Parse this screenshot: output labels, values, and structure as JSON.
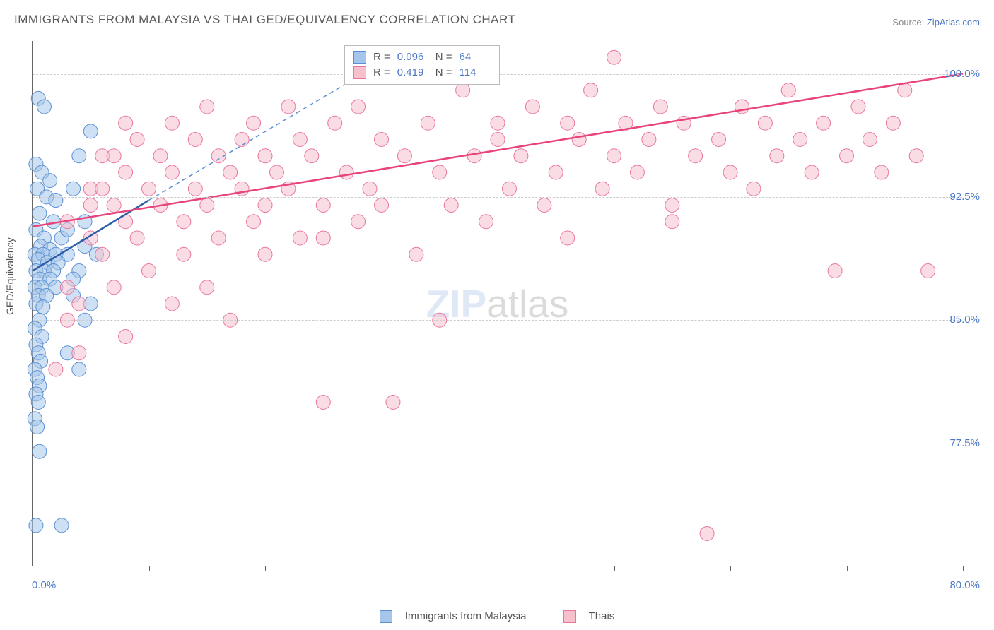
{
  "title": "IMMIGRANTS FROM MALAYSIA VS THAI GED/EQUIVALENCY CORRELATION CHART",
  "source_label": "Source:",
  "source_value": "ZipAtlas.com",
  "ylabel": "GED/Equivalency",
  "chart": {
    "type": "scatter",
    "xlim": [
      0,
      80
    ],
    "ylim": [
      70,
      102
    ],
    "x_tick_start": 10,
    "x_tick_step": 10,
    "x_tick_count": 8,
    "x_label_min": "0.0%",
    "x_label_max": "80.0%",
    "y_gridlines": [
      77.5,
      85.0,
      92.5,
      100.0
    ],
    "y_labels": [
      "77.5%",
      "85.0%",
      "92.5%",
      "100.0%"
    ],
    "background_color": "#ffffff",
    "grid_color": "#cccccc",
    "axis_color": "#666666",
    "marker_radius": 10,
    "marker_opacity": 0.55,
    "series": [
      {
        "name": "Immigrants from Malaysia",
        "fill": "#a5c6ea",
        "stroke": "#5a8fd4",
        "line_color": "#2e5da8",
        "line_width": 2.5,
        "dash_color": "#5a8fd4",
        "trend": {
          "x1": 0,
          "y1": 88.0,
          "x2": 10,
          "y2": 92.3
        },
        "dash_trend": {
          "x1": 10,
          "y1": 92.3,
          "x2": 32,
          "y2": 101.5
        },
        "R": "0.096",
        "N": "64",
        "points": [
          [
            0.5,
            98.5
          ],
          [
            1.0,
            98.0
          ],
          [
            0.3,
            94.5
          ],
          [
            0.8,
            94.0
          ],
          [
            1.5,
            93.5
          ],
          [
            0.4,
            93.0
          ],
          [
            1.2,
            92.5
          ],
          [
            2.0,
            92.3
          ],
          [
            0.6,
            91.5
          ],
          [
            1.8,
            91.0
          ],
          [
            0.3,
            90.5
          ],
          [
            1.0,
            90.0
          ],
          [
            2.5,
            90.0
          ],
          [
            0.7,
            89.5
          ],
          [
            1.5,
            89.3
          ],
          [
            0.2,
            89.0
          ],
          [
            0.9,
            89.0
          ],
          [
            2.0,
            89.0
          ],
          [
            3.0,
            89.0
          ],
          [
            0.5,
            88.7
          ],
          [
            1.3,
            88.5
          ],
          [
            2.2,
            88.5
          ],
          [
            0.3,
            88.0
          ],
          [
            1.0,
            88.0
          ],
          [
            1.8,
            88.0
          ],
          [
            0.6,
            87.5
          ],
          [
            1.5,
            87.5
          ],
          [
            0.2,
            87.0
          ],
          [
            0.8,
            87.0
          ],
          [
            2.0,
            87.0
          ],
          [
            0.5,
            86.5
          ],
          [
            1.2,
            86.5
          ],
          [
            0.3,
            86.0
          ],
          [
            0.9,
            85.8
          ],
          [
            0.6,
            85.0
          ],
          [
            0.2,
            84.5
          ],
          [
            0.8,
            84.0
          ],
          [
            0.3,
            83.5
          ],
          [
            0.5,
            83.0
          ],
          [
            0.7,
            82.5
          ],
          [
            0.2,
            82.0
          ],
          [
            0.4,
            81.5
          ],
          [
            0.6,
            81.0
          ],
          [
            0.3,
            80.5
          ],
          [
            0.5,
            80.0
          ],
          [
            0.2,
            79.0
          ],
          [
            0.4,
            78.5
          ],
          [
            0.6,
            77.0
          ],
          [
            0.3,
            72.5
          ],
          [
            2.5,
            72.5
          ],
          [
            4.0,
            95.0
          ],
          [
            5.0,
            96.5
          ],
          [
            3.5,
            93.0
          ],
          [
            4.5,
            91.0
          ],
          [
            3.0,
            90.5
          ],
          [
            5.5,
            89.0
          ],
          [
            4.0,
            88.0
          ],
          [
            3.5,
            87.5
          ],
          [
            5.0,
            86.0
          ],
          [
            4.5,
            85.0
          ],
          [
            3.0,
            83.0
          ],
          [
            4.0,
            82.0
          ],
          [
            3.5,
            86.5
          ],
          [
            4.5,
            89.5
          ]
        ]
      },
      {
        "name": "Thais",
        "fill": "#f6c0cd",
        "stroke": "#e8769a",
        "line_color": "#e8447a",
        "line_width": 2.5,
        "trend": {
          "x1": 0,
          "y1": 90.7,
          "x2": 80,
          "y2": 100.0
        },
        "R": "0.419",
        "N": "114",
        "points": [
          [
            3,
            91
          ],
          [
            5,
            93
          ],
          [
            6,
            95
          ],
          [
            7,
            92
          ],
          [
            8,
            97
          ],
          [
            8,
            94
          ],
          [
            9,
            90
          ],
          [
            9,
            96
          ],
          [
            10,
            93
          ],
          [
            10,
            88
          ],
          [
            11,
            95
          ],
          [
            11,
            92
          ],
          [
            12,
            97
          ],
          [
            12,
            94
          ],
          [
            13,
            91
          ],
          [
            13,
            89
          ],
          [
            14,
            96
          ],
          [
            14,
            93
          ],
          [
            15,
            98
          ],
          [
            15,
            92
          ],
          [
            16,
            95
          ],
          [
            16,
            90
          ],
          [
            17,
            94
          ],
          [
            17,
            85
          ],
          [
            18,
            93
          ],
          [
            18,
            96
          ],
          [
            19,
            97
          ],
          [
            19,
            91
          ],
          [
            20,
            95
          ],
          [
            20,
            92
          ],
          [
            21,
            94
          ],
          [
            22,
            98
          ],
          [
            22,
            93
          ],
          [
            23,
            90
          ],
          [
            23,
            96
          ],
          [
            24,
            95
          ],
          [
            25,
            92
          ],
          [
            25,
            80
          ],
          [
            26,
            97
          ],
          [
            27,
            94
          ],
          [
            28,
            91
          ],
          [
            28,
            98
          ],
          [
            29,
            93
          ],
          [
            30,
            96
          ],
          [
            30,
            92
          ],
          [
            31,
            80
          ],
          [
            32,
            95
          ],
          [
            33,
            89
          ],
          [
            34,
            97
          ],
          [
            35,
            94
          ],
          [
            35,
            85
          ],
          [
            36,
            92
          ],
          [
            37,
            99
          ],
          [
            38,
            95
          ],
          [
            39,
            91
          ],
          [
            40,
            96
          ],
          [
            40,
            97
          ],
          [
            41,
            93
          ],
          [
            42,
            95
          ],
          [
            43,
            98
          ],
          [
            44,
            92
          ],
          [
            45,
            94
          ],
          [
            46,
            90
          ],
          [
            46,
            97
          ],
          [
            47,
            96
          ],
          [
            48,
            99
          ],
          [
            49,
            93
          ],
          [
            50,
            95
          ],
          [
            50,
            101
          ],
          [
            51,
            97
          ],
          [
            52,
            94
          ],
          [
            53,
            96
          ],
          [
            54,
            98
          ],
          [
            55,
            92
          ],
          [
            55,
            91
          ],
          [
            56,
            97
          ],
          [
            57,
            95
          ],
          [
            58,
            72
          ],
          [
            59,
            96
          ],
          [
            60,
            94
          ],
          [
            61,
            98
          ],
          [
            62,
            93
          ],
          [
            63,
            97
          ],
          [
            64,
            95
          ],
          [
            65,
            99
          ],
          [
            66,
            96
          ],
          [
            67,
            94
          ],
          [
            68,
            97
          ],
          [
            69,
            88
          ],
          [
            70,
            95
          ],
          [
            71,
            98
          ],
          [
            72,
            96
          ],
          [
            73,
            94
          ],
          [
            74,
            97
          ],
          [
            75,
            99
          ],
          [
            76,
            95
          ],
          [
            77,
            88
          ],
          [
            5,
            92
          ],
          [
            6,
            89
          ],
          [
            7,
            87
          ],
          [
            8,
            84
          ],
          [
            3,
            85
          ],
          [
            4,
            83
          ],
          [
            2,
            82
          ],
          [
            3,
            87
          ],
          [
            4,
            86
          ],
          [
            5,
            90
          ],
          [
            6,
            93
          ],
          [
            7,
            95
          ],
          [
            8,
            91
          ],
          [
            12,
            86
          ],
          [
            15,
            87
          ],
          [
            20,
            89
          ],
          [
            25,
            90
          ]
        ]
      }
    ]
  },
  "watermark": {
    "bold": "ZIP",
    "light": "atlas"
  },
  "legend_bottom": [
    {
      "label": "Immigrants from Malaysia",
      "fill": "#a5c6ea",
      "stroke": "#5a8fd4"
    },
    {
      "label": "Thais",
      "fill": "#f6c0cd",
      "stroke": "#e8769a"
    }
  ]
}
